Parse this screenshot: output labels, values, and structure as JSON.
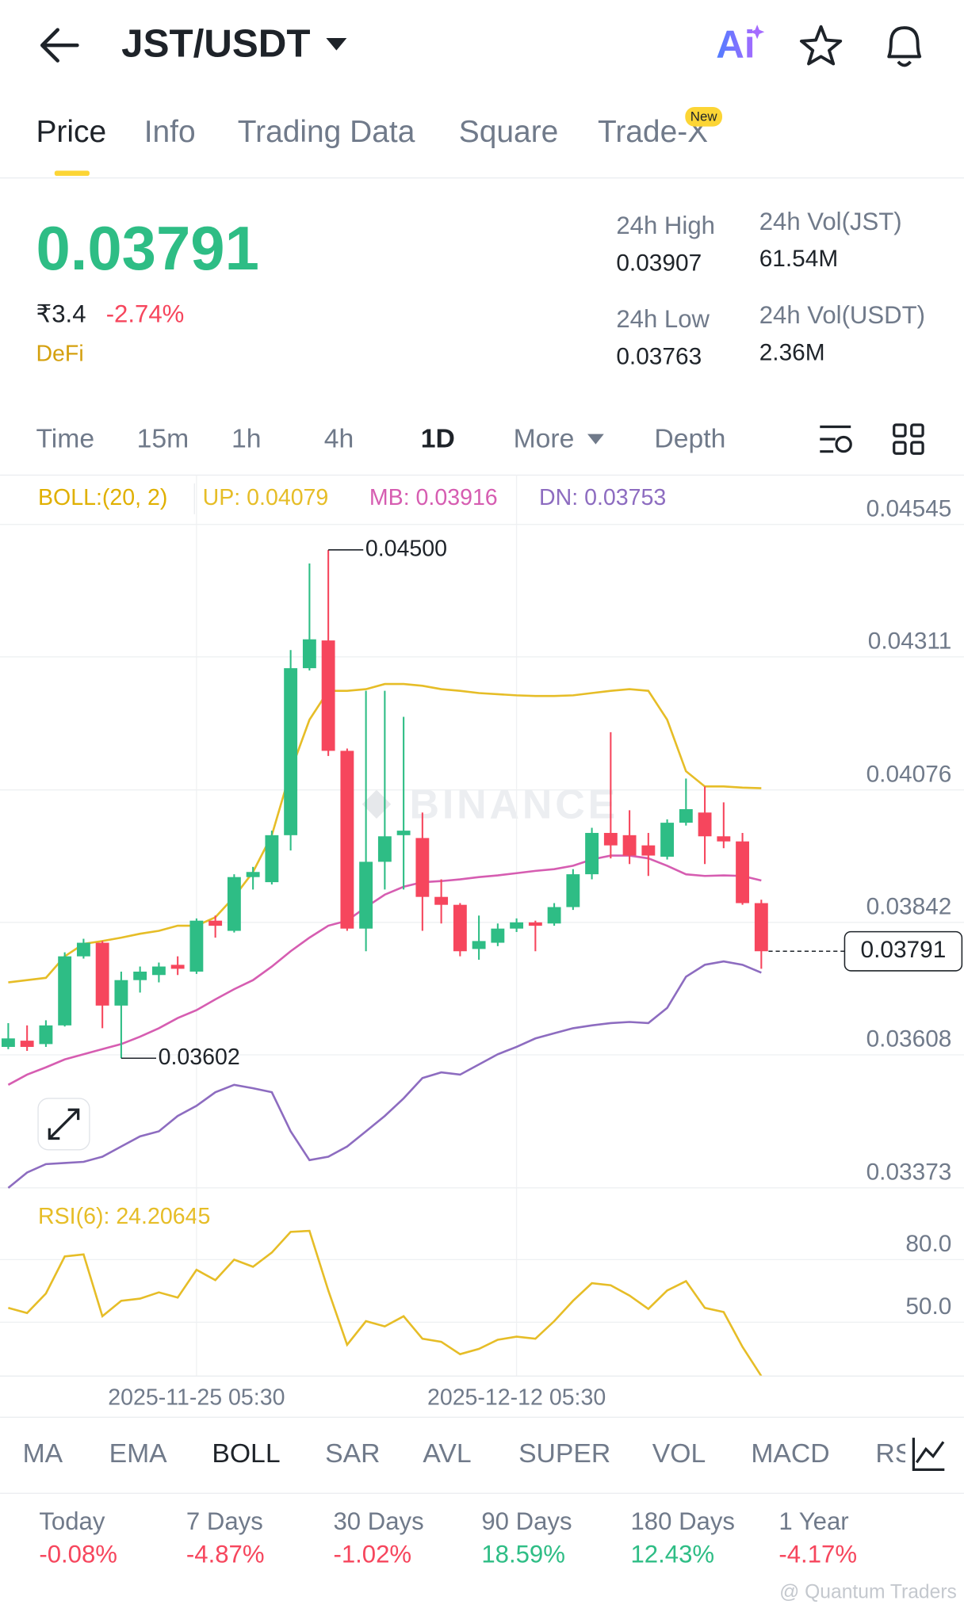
{
  "header": {
    "pair": "JST/USDT",
    "ai": "Ai"
  },
  "tabs": [
    "Price",
    "Info",
    "Trading Data",
    "Square",
    "Trade-X"
  ],
  "tab_badge": "New",
  "ticker": {
    "price": "0.03791",
    "fiat": "₹3.4",
    "change": "-2.74%",
    "tag": "DeFi"
  },
  "stats": [
    {
      "label": "24h High",
      "value": "0.03907"
    },
    {
      "label": "24h Vol(JST)",
      "value": "61.54M"
    },
    {
      "label": "24h Low",
      "value": "0.03763"
    },
    {
      "label": "24h Vol(USDT)",
      "value": "2.36M"
    }
  ],
  "intervals": [
    "Time",
    "15m",
    "1h",
    "4h",
    "1D",
    "More",
    "Depth"
  ],
  "indicator_tabs": [
    "MA",
    "EMA",
    "BOLL",
    "SAR",
    "AVL",
    "SUPER",
    "VOL",
    "MACD",
    "RS"
  ],
  "performance": [
    {
      "period": "Today",
      "change": "-0.08%"
    },
    {
      "period": "7 Days",
      "change": "-4.87%"
    },
    {
      "period": "30 Days",
      "change": "-1.02%"
    },
    {
      "period": "90 Days",
      "change": "18.59%"
    },
    {
      "period": "180 Days",
      "change": "12.43%"
    },
    {
      "period": "1 Year",
      "change": "-4.17%"
    }
  ],
  "footer_watermark": "@ Quantum Traders",
  "chart_data": [
    {
      "type": "candlestick",
      "legend_title": "BOLL:(20, 2)",
      "watermark": "BINANCE",
      "categories": [
        null,
        null,
        null,
        null,
        null,
        null,
        null,
        null,
        null,
        null,
        "2025-11-25 05:30",
        null,
        null,
        null,
        null,
        null,
        null,
        null,
        null,
        null,
        null,
        null,
        null,
        null,
        null,
        null,
        null,
        "2025-12-12 05:30",
        null,
        null,
        null,
        null,
        null,
        null,
        null,
        null,
        null,
        null,
        null,
        null,
        null
      ],
      "open": [
        0.03622,
        0.03633,
        0.03627,
        0.0366,
        0.03782,
        0.03806,
        0.03695,
        0.0374,
        0.03749,
        0.03767,
        0.03755,
        0.03845,
        0.03827,
        0.03922,
        0.03913,
        0.03996,
        0.04291,
        0.0434,
        0.04145,
        0.03831,
        0.03949,
        0.03996,
        0.03991,
        0.03887,
        0.03873,
        0.03795,
        0.03806,
        0.03831,
        0.03842,
        0.0384,
        0.03869,
        0.03927,
        0.04,
        0.03996,
        0.03978,
        0.03958,
        0.04018,
        0.04036,
        0.03994,
        0.03985,
        0.03876
      ],
      "high": [
        0.03664,
        0.0366,
        0.03669,
        0.03789,
        0.03813,
        0.03809,
        0.03755,
        0.03764,
        0.03771,
        0.03782,
        0.03849,
        0.03854,
        0.03927,
        0.0394,
        0.04004,
        0.04323,
        0.04476,
        0.045,
        0.04149,
        0.04251,
        0.04251,
        0.04205,
        0.04036,
        0.03918,
        0.03876,
        0.03854,
        0.0384,
        0.03849,
        0.03845,
        0.03876,
        0.03936,
        0.04009,
        0.04178,
        0.0404,
        0.04,
        0.04024,
        0.04096,
        0.04082,
        0.04054,
        0.04,
        0.03882
      ],
      "low": [
        0.03618,
        0.03615,
        0.03622,
        0.03658,
        0.03778,
        0.03655,
        0.03602,
        0.03718,
        0.03736,
        0.03749,
        0.03751,
        0.03815,
        0.03824,
        0.039,
        0.03909,
        0.03969,
        0.04287,
        0.04136,
        0.03827,
        0.03791,
        0.039,
        0.039,
        0.03827,
        0.0384,
        0.03782,
        0.03776,
        0.038,
        0.03825,
        0.03791,
        0.03836,
        0.03864,
        0.03918,
        0.03955,
        0.03945,
        0.03924,
        0.03953,
        0.04013,
        0.03945,
        0.03973,
        0.03873,
        0.0376
      ],
      "close": [
        0.03637,
        0.03622,
        0.0366,
        0.03782,
        0.03806,
        0.03695,
        0.0374,
        0.03755,
        0.03764,
        0.0376,
        0.03845,
        0.03836,
        0.03922,
        0.03931,
        0.03996,
        0.04291,
        0.04342,
        0.04145,
        0.03831,
        0.03949,
        0.03994,
        0.04004,
        0.03887,
        0.03873,
        0.03791,
        0.03809,
        0.03831,
        0.03842,
        0.03836,
        0.03869,
        0.03927,
        0.04,
        0.03978,
        0.0396,
        0.0396,
        0.04018,
        0.04042,
        0.03994,
        0.03985,
        0.03876,
        0.03791
      ],
      "up_color": "#2ebd85",
      "down_color": "#f6465d",
      "series": [
        {
          "name": "UP: 0.04079",
          "color": "#e6bd27",
          "values": [
            0.03736,
            0.0374,
            0.03744,
            0.03782,
            0.03804,
            0.03809,
            0.03815,
            0.03822,
            0.03827,
            0.03836,
            0.03836,
            0.03851,
            0.03887,
            0.03931,
            0.03996,
            0.04109,
            0.042,
            0.04251,
            0.04251,
            0.04254,
            0.04263,
            0.04263,
            0.0426,
            0.04254,
            0.04251,
            0.04247,
            0.04245,
            0.04243,
            0.04242,
            0.04242,
            0.04243,
            0.04247,
            0.04251,
            0.04254,
            0.04251,
            0.042,
            0.04109,
            0.04082,
            0.04082,
            0.0408,
            0.04079
          ]
        },
        {
          "name": "MB: 0.03916",
          "color": "#d65db1",
          "values": [
            0.03555,
            0.03573,
            0.03586,
            0.036,
            0.03609,
            0.03618,
            0.03627,
            0.0364,
            0.03655,
            0.03673,
            0.03687,
            0.03706,
            0.03724,
            0.0374,
            0.03764,
            0.03791,
            0.03815,
            0.03836,
            0.03845,
            0.03869,
            0.03891,
            0.03905,
            0.03913,
            0.03915,
            0.03918,
            0.03922,
            0.03925,
            0.03929,
            0.03933,
            0.03936,
            0.03942,
            0.03953,
            0.0396,
            0.0396,
            0.03955,
            0.03942,
            0.03927,
            0.03924,
            0.03925,
            0.03924,
            0.03916
          ]
        },
        {
          "name": "DN: 0.03753",
          "color": "#8d6cc0",
          "values": [
            0.03373,
            0.034,
            0.03415,
            0.03417,
            0.03419,
            0.03428,
            0.03446,
            0.03464,
            0.03473,
            0.035,
            0.03518,
            0.03542,
            0.03555,
            0.03549,
            0.03542,
            0.03473,
            0.03422,
            0.03428,
            0.03446,
            0.03473,
            0.035,
            0.03531,
            0.03567,
            0.03577,
            0.03573,
            0.03591,
            0.03609,
            0.03622,
            0.03637,
            0.03646,
            0.03655,
            0.0366,
            0.03664,
            0.03666,
            0.03664,
            0.03691,
            0.03746,
            0.03767,
            0.03773,
            0.03767,
            0.03753
          ]
        }
      ],
      "ylim": [
        0.03373,
        0.04632
      ],
      "yticks": [
        0.04545,
        0.04311,
        0.04076,
        0.03842,
        0.03608,
        0.03373
      ],
      "grid": true,
      "max_marker": {
        "value": 0.045,
        "label": "0.04500"
      },
      "min_marker": {
        "value": 0.03602,
        "label": "0.03602"
      },
      "last_price": {
        "value": 0.03791,
        "label": "0.03791"
      }
    },
    {
      "type": "line",
      "series": [
        {
          "name": "RSI(6): 24.20645",
          "color": "#e6bd27",
          "values": [
            56.9,
            54.4,
            63.8,
            81.5,
            82.5,
            52.9,
            60.3,
            61.3,
            64.3,
            61.8,
            75.1,
            70.2,
            80.0,
            76.6,
            83.4,
            93.3,
            93.8,
            65.2,
            39.2,
            50.5,
            48.0,
            52.9,
            42.1,
            40.6,
            34.7,
            37.2,
            41.6,
            43.1,
            42.1,
            50.5,
            60.3,
            68.7,
            67.7,
            62.8,
            56.4,
            65.2,
            69.7,
            56.9,
            54.9,
            38.2,
            24.20645
          ]
        }
      ],
      "ylim": [
        24.2,
        107
      ],
      "yticks": [
        {
          "value": 80,
          "label": "80.0"
        },
        {
          "value": 50,
          "label": "50.0"
        }
      ],
      "grid": true
    }
  ]
}
